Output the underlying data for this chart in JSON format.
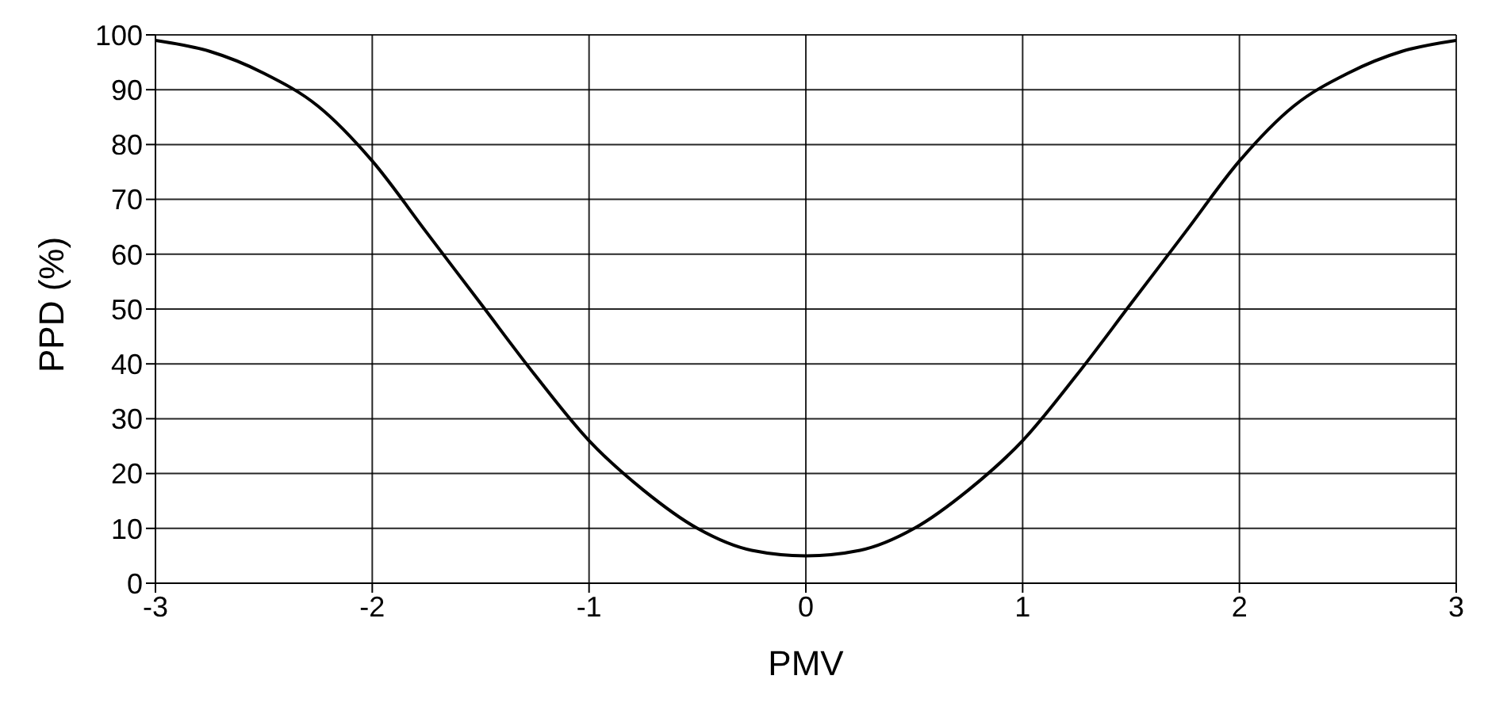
{
  "chart_data": {
    "type": "line",
    "xlabel": "PMV",
    "ylabel": "PPD (%)",
    "x": [
      -3,
      -2.75,
      -2.5,
      -2.25,
      -2,
      -1.75,
      -1.5,
      -1.25,
      -1,
      -0.75,
      -0.5,
      -0.25,
      0,
      0.25,
      0.5,
      0.75,
      1,
      1.25,
      1.5,
      1.75,
      2,
      2.25,
      2.5,
      2.75,
      3
    ],
    "series": [
      {
        "color": "#000000",
        "values": [
          99,
          97,
          93,
          87,
          77,
          64,
          51,
          38,
          26,
          17,
          10,
          6,
          5,
          6,
          10,
          17,
          26,
          38,
          51,
          64,
          77,
          87,
          93,
          97,
          99
        ]
      }
    ],
    "xlim": [
      -3,
      3
    ],
    "xticks": [
      -3,
      -2,
      -1,
      0,
      1,
      2,
      3
    ],
    "ylim": [
      0,
      100
    ],
    "yticks": [
      0,
      10,
      20,
      30,
      40,
      50,
      60,
      70,
      80,
      90,
      100
    ],
    "grid": true,
    "marker": "none",
    "line_style": "solid"
  }
}
